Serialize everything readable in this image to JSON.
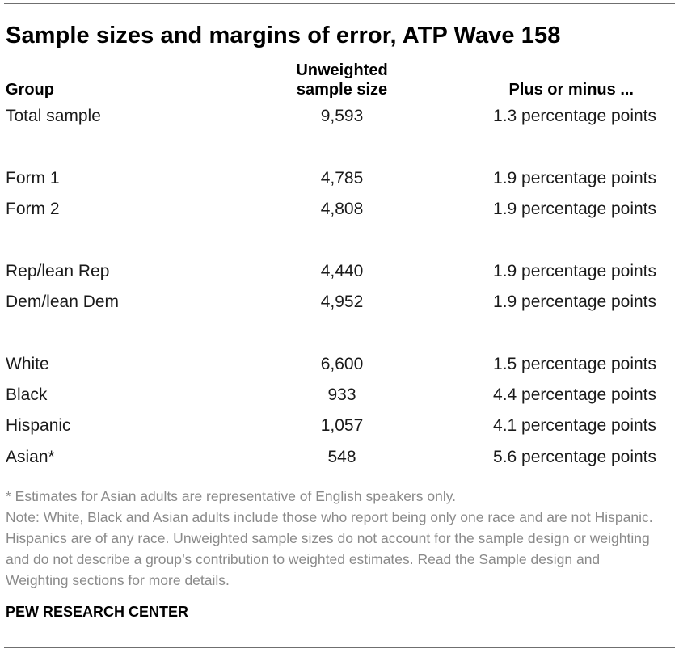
{
  "title": "Sample sizes and margins of error, ATP Wave 158",
  "columns": {
    "group": "Group",
    "sample_size_line1": "Unweighted",
    "sample_size_line2": "sample size",
    "margin": "Plus or minus ..."
  },
  "rows": [
    {
      "group": "Total sample",
      "n": "9,593",
      "moe": "1.3 percentage points"
    },
    {
      "group": "Form 1",
      "n": "4,785",
      "moe": "1.9 percentage points"
    },
    {
      "group": "Form 2",
      "n": "4,808",
      "moe": "1.9 percentage points"
    },
    {
      "group": "Rep/lean Rep",
      "n": "4,440",
      "moe": "1.9 percentage points"
    },
    {
      "group": "Dem/lean Dem",
      "n": "4,952",
      "moe": "1.9 percentage points"
    },
    {
      "group": "White",
      "n": "6,600",
      "moe": "1.5 percentage points"
    },
    {
      "group": "Black",
      "n": "933",
      "moe": "4.4 percentage points"
    },
    {
      "group": "Hispanic",
      "n": "1,057",
      "moe": "4.1 percentage points"
    },
    {
      "group": "Asian*",
      "n": "548",
      "moe": "5.6 percentage points"
    }
  ],
  "footnote": "* Estimates for Asian adults are representative of English speakers only.",
  "note": "Note: White, Black and Asian adults include those who report being only one race and are not Hispanic. Hispanics are of any race. Unweighted sample sizes do not account for the sample design or weighting and do not describe a group’s contribution to weighted estimates. Read the Sample design and Weighting sections for more details.",
  "source": "PEW RESEARCH CENTER"
}
